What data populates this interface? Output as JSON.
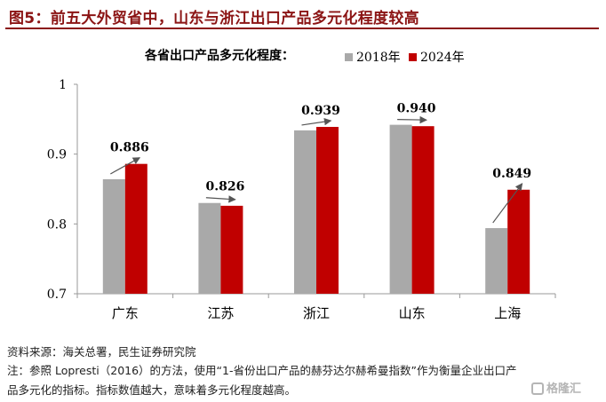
{
  "figure_title": "图5：前五大外贸省中，山东与浙江出口产品多元化程度较高",
  "chart_data": {
    "type": "bar",
    "title": "各省出口产品多元化程度：",
    "categories": [
      "广东",
      "江苏",
      "浙江",
      "山东",
      "上海"
    ],
    "series": [
      {
        "name": "2018年",
        "color": "#a9a9a9",
        "values": [
          0.864,
          0.83,
          0.934,
          0.942,
          0.794
        ]
      },
      {
        "name": "2024年",
        "color": "#c00000",
        "values": [
          0.886,
          0.826,
          0.939,
          0.94,
          0.849
        ]
      }
    ],
    "data_labels": [
      "0.886",
      "0.826",
      "0.939",
      "0.940",
      "0.849"
    ],
    "ylim": [
      0.7,
      1.0
    ],
    "yticks": [
      "0.7",
      "0.8",
      "0.9",
      "1"
    ],
    "ytick_values": [
      0.7,
      0.8,
      0.9,
      1.0
    ],
    "xlabel": "",
    "ylabel": "",
    "grid": false,
    "legend_position": "top",
    "annotations": "arrows from 2018 bar top to 2024 bar top for each province"
  },
  "footer": {
    "source": "资料来源：海关总署，民生证券研究院",
    "note_line1": "注：参照 Lopresti（2016）的方法，使用“1-省份出口产品的赫芬达尔赫希曼指数”作为衡量企业出口产",
    "note_line2": "品多元化的指标。指标数值越大，意味着多元化程度越高。"
  },
  "watermark": "格隆汇"
}
